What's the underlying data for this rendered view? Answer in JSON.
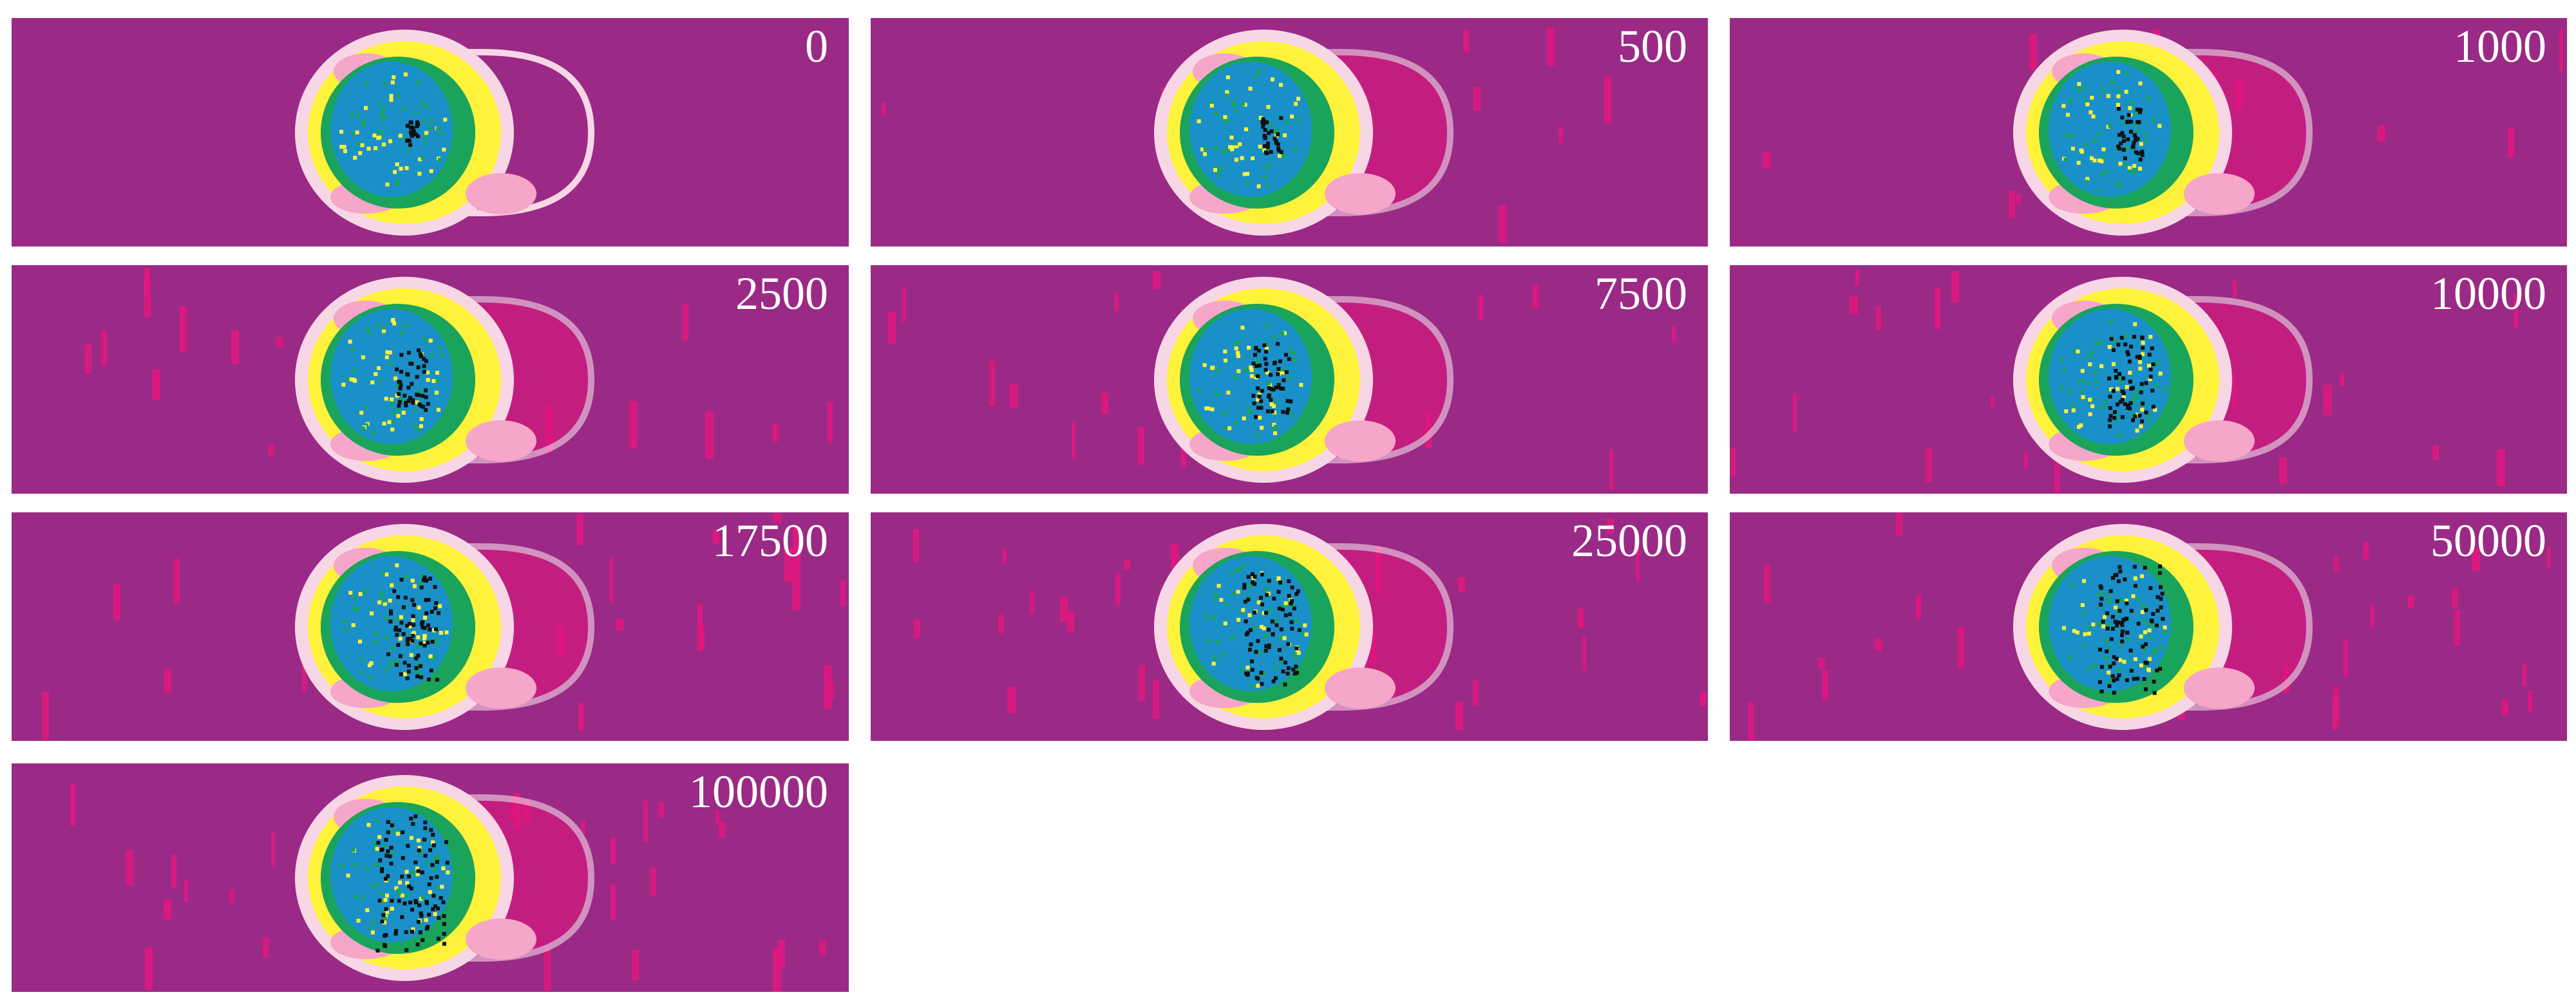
{
  "figure": {
    "background_color": "#9a2a86",
    "palette": {
      "field": "#9a2a86",
      "outer_shell": "#f7d7e6",
      "cavity_line": "#f06bb0",
      "cavity_fill": "#e0157d",
      "yellow_band": "#fff23a",
      "pink_band": "#f5a6c9",
      "green_layer": "#1aa35a",
      "blue_core": "#1a90c9",
      "dark_core": "#111111",
      "streak": "#e3187f"
    },
    "panels": [
      {
        "label": "0"
      },
      {
        "label": "500"
      },
      {
        "label": "1000"
      },
      {
        "label": "2500"
      },
      {
        "label": "7500"
      },
      {
        "label": "10000"
      },
      {
        "label": "17500"
      },
      {
        "label": "25000"
      },
      {
        "label": "50000"
      },
      {
        "label": "100000"
      }
    ]
  }
}
